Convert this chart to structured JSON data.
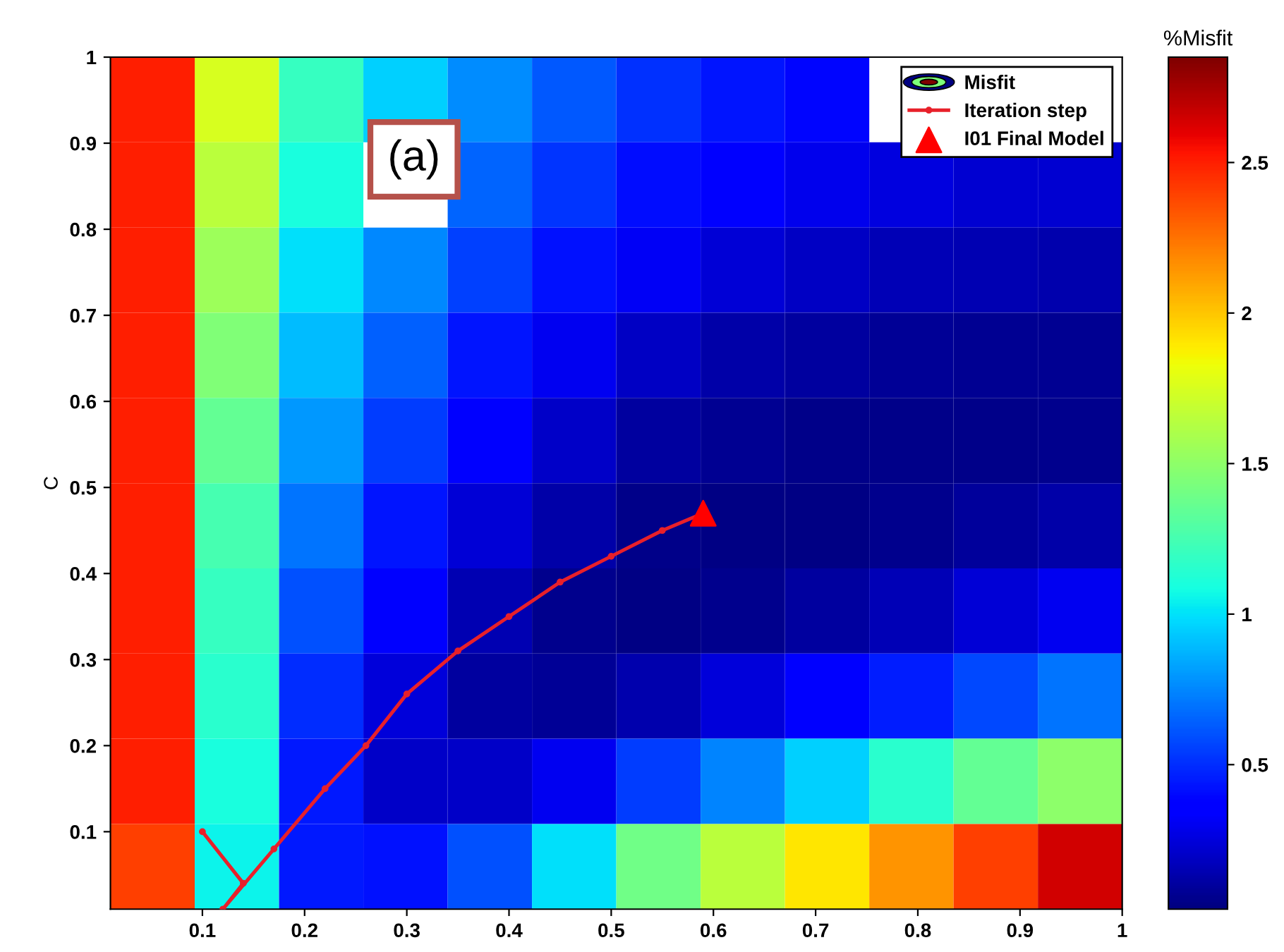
{
  "chart_data": {
    "type": "heatmap",
    "ylabel": "C",
    "clabel": "%Misfit",
    "annotations": [
      "(a)"
    ],
    "xlim": [
      0.01,
      1
    ],
    "ylim": [
      0.01,
      1
    ],
    "xticks": [
      0.1,
      0.2,
      0.3,
      0.4,
      0.5,
      0.6,
      0.7,
      0.8,
      0.9,
      1
    ],
    "yticks": [
      0.1,
      0.2,
      0.3,
      0.4,
      0.5,
      0.6,
      0.7,
      0.8,
      0.9,
      1
    ],
    "clim": [
      0.02,
      2.85
    ],
    "cticks": [
      0.5,
      1,
      1.5,
      2,
      2.5
    ],
    "legend": "top right",
    "cells": [
      [
        2.5,
        1.75,
        1.2,
        0.95,
        0.77,
        0.62,
        0.51,
        0.44,
        0.39,
        null,
        null,
        null
      ],
      [
        2.5,
        1.65,
        1.1,
        null,
        0.66,
        0.52,
        0.41,
        0.34,
        0.29,
        0.26,
        0.23,
        0.22
      ],
      [
        2.5,
        1.55,
        1.0,
        0.75,
        0.56,
        0.42,
        0.31,
        0.24,
        0.19,
        0.16,
        0.15,
        0.14
      ],
      [
        2.5,
        1.45,
        0.9,
        0.64,
        0.44,
        0.3,
        0.19,
        0.13,
        0.1,
        0.08,
        0.07,
        0.07
      ],
      [
        2.5,
        1.35,
        0.8,
        0.54,
        0.34,
        0.2,
        0.1,
        0.07,
        0.05,
        0.05,
        0.05,
        0.06
      ],
      [
        2.5,
        1.25,
        0.7,
        0.44,
        0.24,
        0.12,
        0.05,
        0.04,
        0.04,
        0.06,
        0.09,
        0.12
      ],
      [
        2.5,
        1.2,
        0.6,
        0.34,
        0.15,
        0.06,
        0.04,
        0.06,
        0.1,
        0.16,
        0.24,
        0.3
      ],
      [
        2.5,
        1.15,
        0.5,
        0.25,
        0.1,
        0.08,
        0.14,
        0.25,
        0.35,
        0.46,
        0.58,
        0.7
      ],
      [
        2.5,
        1.1,
        0.45,
        0.2,
        0.2,
        0.3,
        0.54,
        0.74,
        0.95,
        1.15,
        1.35,
        1.5
      ],
      [
        2.4,
        1.05,
        0.45,
        0.42,
        0.6,
        1.0,
        1.4,
        1.65,
        1.9,
        2.15,
        2.4,
        2.65
      ]
    ],
    "series": [
      {
        "name": "Misfit"
      },
      {
        "name": "Iteration step",
        "type": "line",
        "color": "#e8202a",
        "marker": "circle",
        "line_style": "solid",
        "x": [
          0.1,
          0.14,
          0.12,
          0.17,
          0.22,
          0.26,
          0.3,
          0.35,
          0.4,
          0.45,
          0.5,
          0.55,
          0.59
        ],
        "values": [
          0.1,
          0.04,
          0.01,
          0.08,
          0.15,
          0.2,
          0.26,
          0.31,
          0.35,
          0.39,
          0.42,
          0.45,
          0.47
        ]
      },
      {
        "name": "I01 Final Model",
        "type": "scatter",
        "color": "#ff0000",
        "marker": "triangle",
        "x": [
          0.59
        ],
        "values": [
          0.47
        ]
      }
    ]
  }
}
